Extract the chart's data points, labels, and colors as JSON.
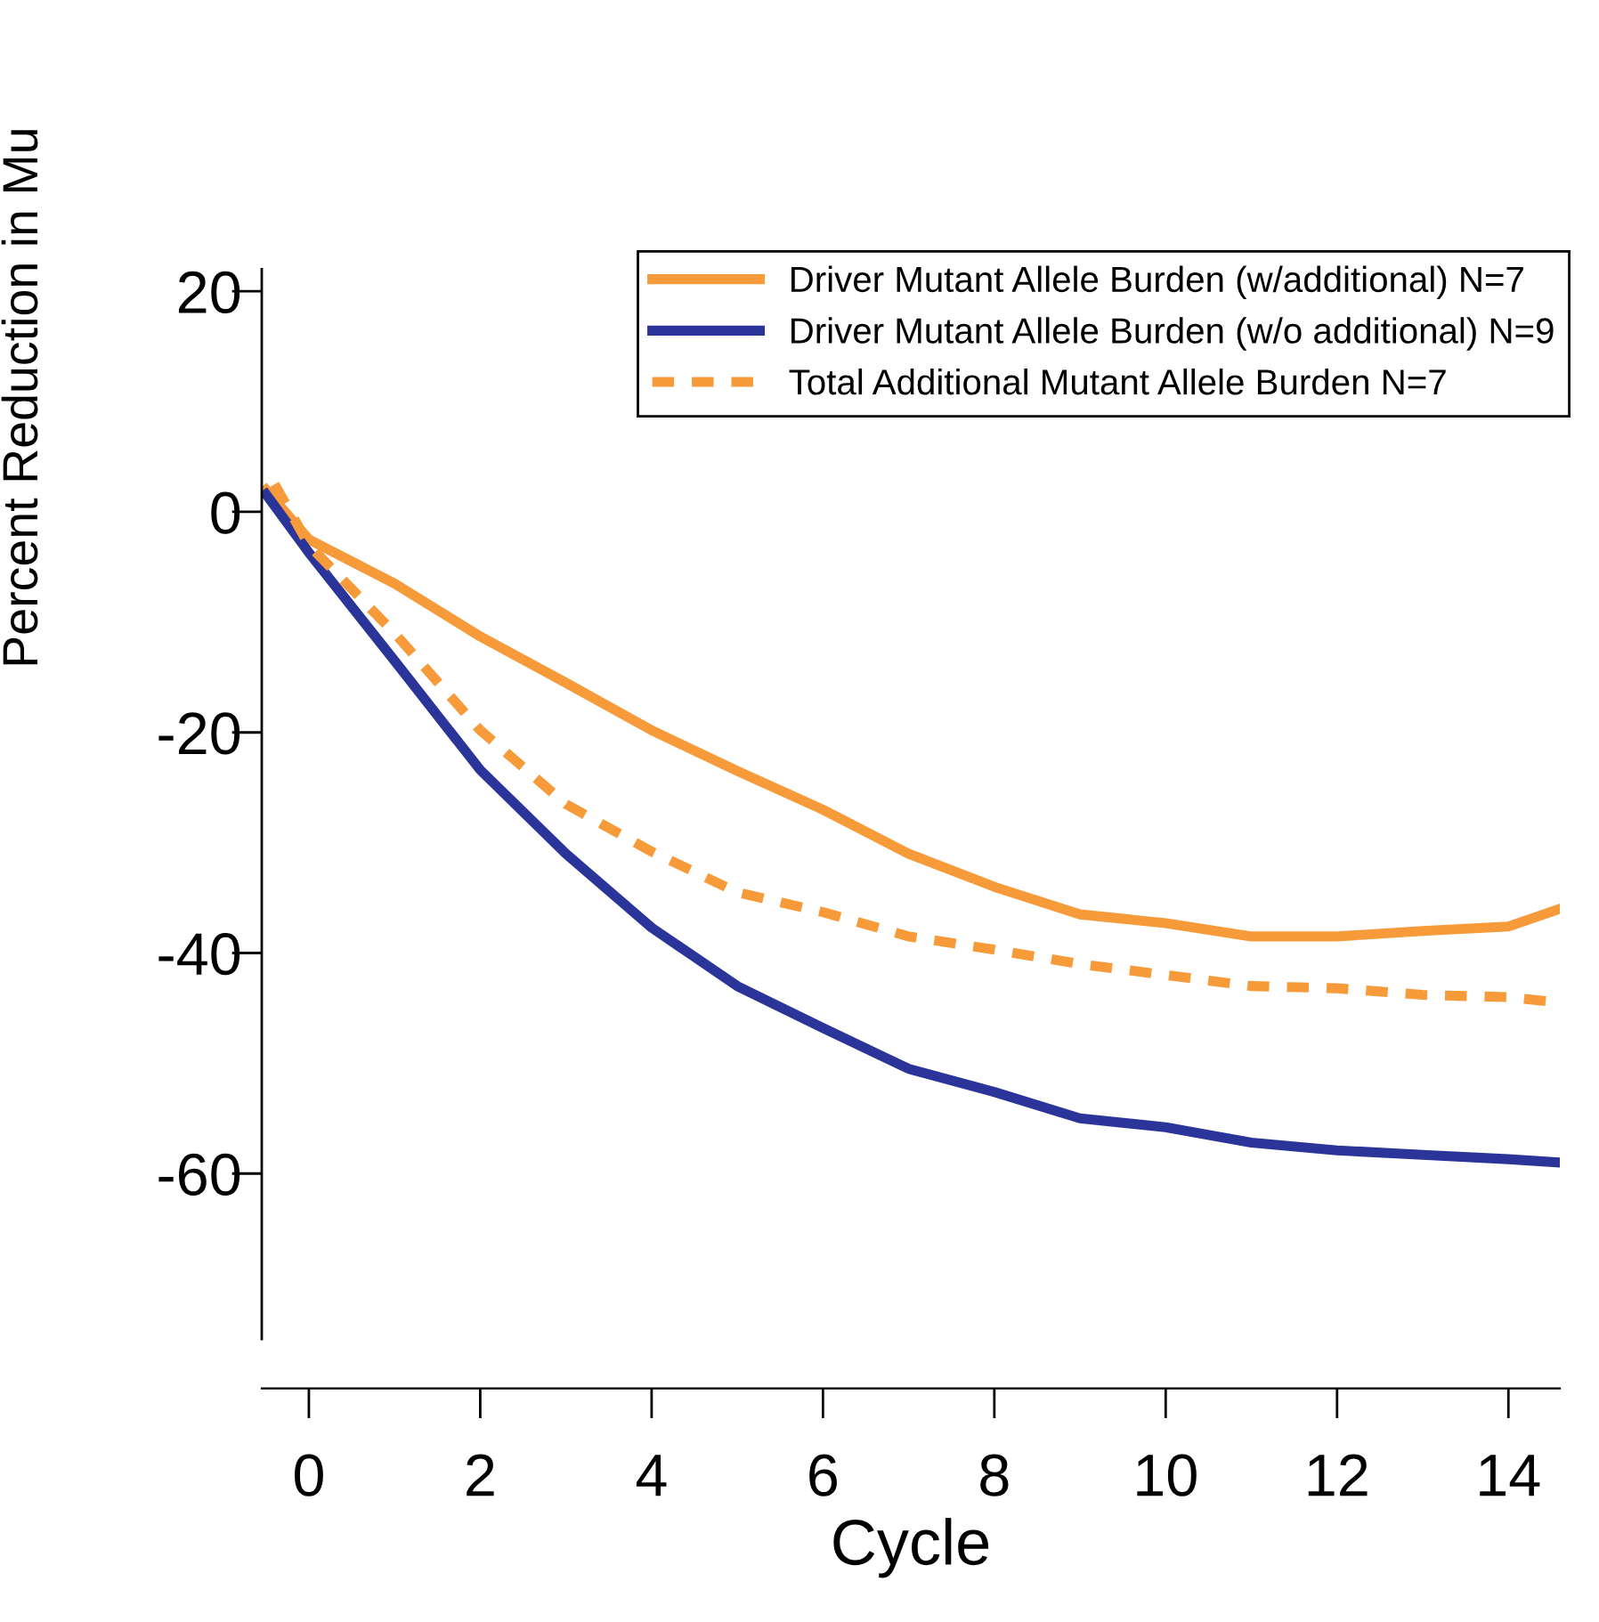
{
  "chart_data": {
    "type": "line",
    "xlabel": "Cycle",
    "ylabel": "Percent Reduction in Mu",
    "xlim": [
      -0.55,
      14.6
    ],
    "ylim": [
      -75,
      22
    ],
    "xticks": [
      0,
      2,
      4,
      6,
      8,
      10,
      12,
      14
    ],
    "yticks": [
      20,
      0,
      -20,
      -40,
      -60
    ],
    "grid": false,
    "legend": "top right",
    "series": [
      {
        "name": "Driver Mutant Allele Burden (w/additional) N=7",
        "color": "#f79a3a",
        "line_style": "solid",
        "x": [
          -0.5,
          0,
          1,
          2,
          3,
          4,
          5,
          6,
          7,
          8,
          9,
          10,
          11,
          12,
          13,
          14,
          14.6
        ],
        "values": [
          2,
          -2.5,
          -6.5,
          -11.3,
          -15.5,
          -19.8,
          -23.5,
          -27,
          -31,
          -34,
          -36.5,
          -37.3,
          -38.5,
          -38.5,
          -38,
          -37.6,
          -36
        ]
      },
      {
        "name": "Driver Mutant Allele Burden (w/o additional) N=9",
        "color": "#2a3499",
        "line_style": "solid",
        "x": [
          -0.5,
          0,
          1,
          2,
          3,
          4,
          5,
          6,
          7,
          8,
          9,
          10,
          11,
          12,
          13,
          14,
          14.6
        ],
        "values": [
          1.6,
          -3.7,
          -13.5,
          -23.4,
          -31,
          -37.7,
          -43,
          -46.8,
          -50.5,
          -52.6,
          -55,
          -55.8,
          -57.2,
          -57.9,
          -58.3,
          -58.7,
          -59
        ]
      },
      {
        "name": "Total Additional Mutant Allele Burden N=7",
        "color": "#f79a3a",
        "line_style": "dashed",
        "x": [
          -0.4,
          0,
          1,
          2,
          3,
          4,
          5,
          6,
          7,
          8,
          9,
          10,
          11,
          12,
          13,
          14,
          14.6
        ],
        "values": [
          2.5,
          -3,
          -11,
          -19.8,
          -26.5,
          -30.8,
          -34.5,
          -36.3,
          -38.5,
          -39.7,
          -41,
          -42,
          -43,
          -43.2,
          -43.8,
          -44,
          -44.5
        ]
      }
    ]
  }
}
